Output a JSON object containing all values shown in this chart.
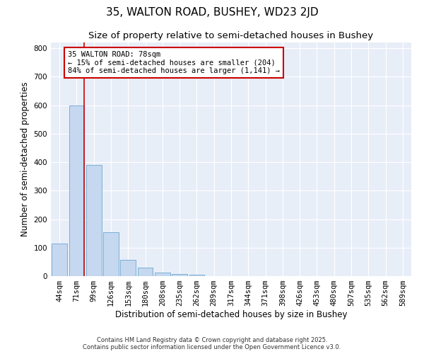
{
  "title": "35, WALTON ROAD, BUSHEY, WD23 2JD",
  "subtitle": "Size of property relative to semi-detached houses in Bushey",
  "xlabel": "Distribution of semi-detached houses by size in Bushey",
  "ylabel": "Number of semi-detached properties",
  "categories": [
    "44sqm",
    "71sqm",
    "99sqm",
    "126sqm",
    "153sqm",
    "180sqm",
    "208sqm",
    "235sqm",
    "262sqm",
    "289sqm",
    "317sqm",
    "344sqm",
    "371sqm",
    "398sqm",
    "426sqm",
    "453sqm",
    "480sqm",
    "507sqm",
    "535sqm",
    "562sqm",
    "589sqm"
  ],
  "values": [
    115,
    600,
    390,
    155,
    57,
    30,
    12,
    8,
    5,
    0,
    0,
    0,
    0,
    0,
    0,
    0,
    0,
    0,
    0,
    0,
    0
  ],
  "bar_color": "#c5d8f0",
  "bar_edge_color": "#7aafd4",
  "background_color": "#e8eef8",
  "grid_color": "#ffffff",
  "vline_color": "#cc0000",
  "annotation_line1": "35 WALTON ROAD: 78sqm",
  "annotation_line2": "← 15% of semi-detached houses are smaller (204)",
  "annotation_line3": "84% of semi-detached houses are larger (1,141) →",
  "annotation_box_color": "#cc0000",
  "ylim": [
    0,
    820
  ],
  "yticks": [
    0,
    100,
    200,
    300,
    400,
    500,
    600,
    700,
    800
  ],
  "footer1": "Contains HM Land Registry data © Crown copyright and database right 2025.",
  "footer2": "Contains public sector information licensed under the Open Government Licence v3.0.",
  "title_fontsize": 11,
  "subtitle_fontsize": 9.5,
  "axis_label_fontsize": 8.5,
  "tick_fontsize": 7.5,
  "annotation_fontsize": 7.5,
  "footer_fontsize": 6
}
